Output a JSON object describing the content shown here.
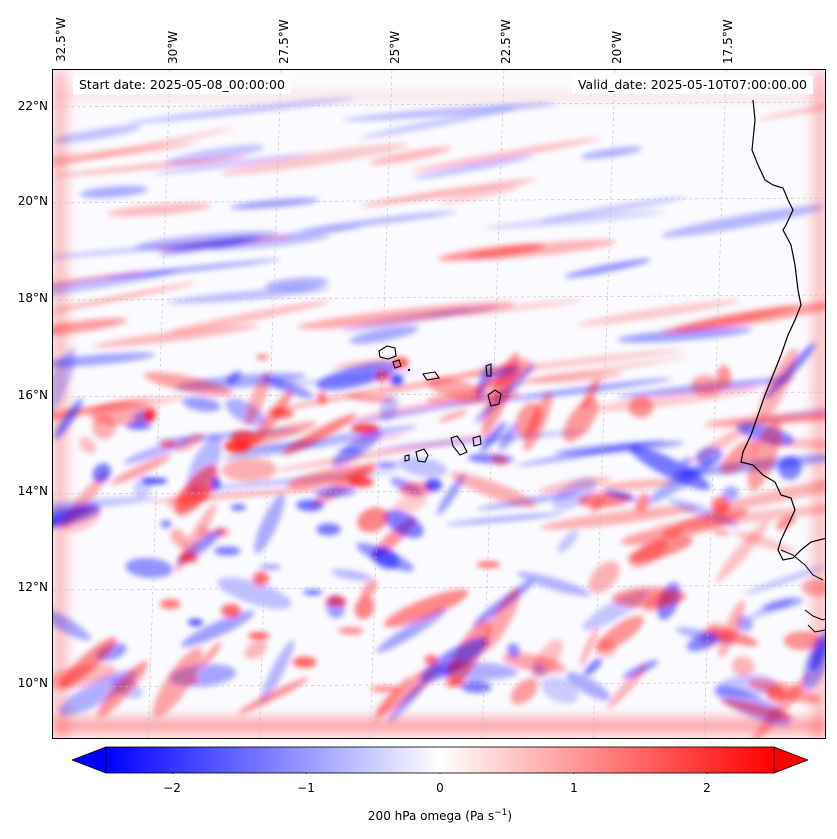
{
  "map": {
    "start_date": "Start date: 2025-05-08_00:00:00",
    "valid_date": "Valid_date: 2025-05-10T07:00:00.00",
    "longitude_labels": [
      "32.5°W",
      "30°W",
      "27.5°W",
      "25°W",
      "22.5°W",
      "20°W",
      "17.5°W"
    ],
    "latitude_labels": [
      "22°N",
      "20°N",
      "18°N",
      "16°N",
      "14°N",
      "12°N",
      "10°N"
    ],
    "field": "200 hPa omega",
    "colormap": "bwr",
    "colors": {
      "negative": "#0000ff",
      "zero": "#ffffff",
      "positive": "#ff0000",
      "coastline": "#000000",
      "gridline": "#bbbbbb"
    }
  },
  "colorbar": {
    "ticks": [
      "−2",
      "−1",
      "0",
      "1",
      "2"
    ],
    "tick_values": [
      -2,
      -1,
      0,
      1,
      2
    ],
    "range": [
      -2.5,
      2.5
    ],
    "extend": "both",
    "label_main": "200 hPa omega (Pa s",
    "label_sup": "−1",
    "label_close": ")"
  }
}
